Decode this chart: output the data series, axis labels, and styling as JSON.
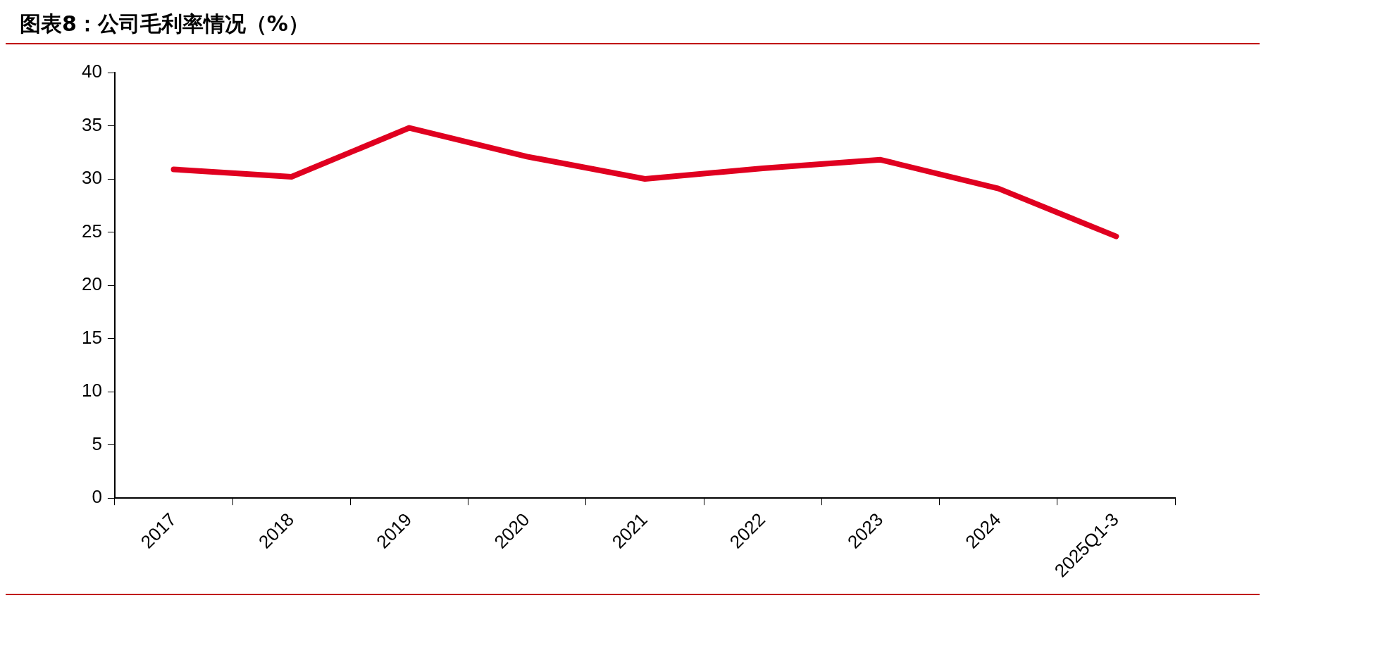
{
  "chart_data": {
    "type": "line",
    "title": "图表8：公司毛利率情况（%）",
    "categories": [
      "2017",
      "2018",
      "2019",
      "2020",
      "2021",
      "2022",
      "2023",
      "2024",
      "2025Q1-3"
    ],
    "series": [
      {
        "color": "#e00020",
        "values": [
          30.9,
          30.2,
          34.8,
          32.1,
          30.0,
          31.0,
          31.8,
          29.1,
          24.6
        ]
      }
    ],
    "ylim": [
      0,
      40
    ],
    "yticks": [
      0,
      5,
      10,
      15,
      20,
      25,
      30,
      35,
      40
    ],
    "grid": false,
    "legend": false,
    "marker": "none",
    "line_style": "solid"
  }
}
